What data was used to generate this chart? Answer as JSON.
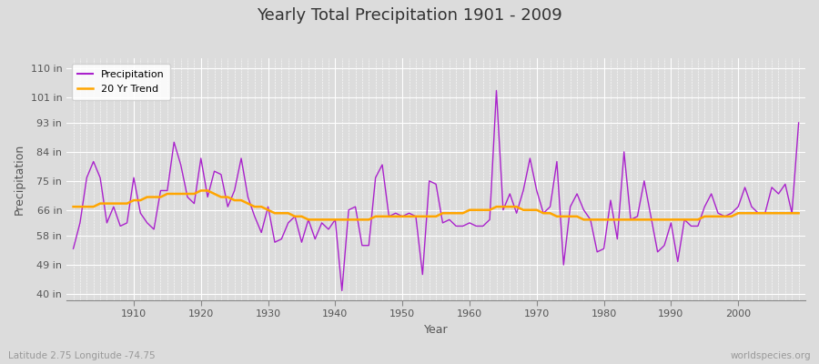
{
  "title": "Yearly Total Precipitation 1901 - 2009",
  "xlabel": "Year",
  "ylabel": "Precipitation",
  "bottom_left": "Latitude 2.75 Longitude -74.75",
  "bottom_right": "worldspecies.org",
  "years": [
    1901,
    1902,
    1903,
    1904,
    1905,
    1906,
    1907,
    1908,
    1909,
    1910,
    1911,
    1912,
    1913,
    1914,
    1915,
    1916,
    1917,
    1918,
    1919,
    1920,
    1921,
    1922,
    1923,
    1924,
    1925,
    1926,
    1927,
    1928,
    1929,
    1930,
    1931,
    1932,
    1933,
    1934,
    1935,
    1936,
    1937,
    1938,
    1939,
    1940,
    1941,
    1942,
    1943,
    1944,
    1945,
    1946,
    1947,
    1948,
    1949,
    1950,
    1951,
    1952,
    1953,
    1954,
    1955,
    1956,
    1957,
    1958,
    1959,
    1960,
    1961,
    1962,
    1963,
    1964,
    1965,
    1966,
    1967,
    1968,
    1969,
    1970,
    1971,
    1972,
    1973,
    1974,
    1975,
    1976,
    1977,
    1978,
    1979,
    1980,
    1981,
    1982,
    1983,
    1984,
    1985,
    1986,
    1987,
    1988,
    1989,
    1990,
    1991,
    1992,
    1993,
    1994,
    1995,
    1996,
    1997,
    1998,
    1999,
    2000,
    2001,
    2002,
    2003,
    2004,
    2005,
    2006,
    2007,
    2008,
    2009
  ],
  "precip": [
    54,
    62,
    76,
    81,
    76,
    62,
    67,
    61,
    62,
    76,
    65,
    62,
    60,
    72,
    72,
    87,
    80,
    70,
    68,
    82,
    70,
    78,
    77,
    67,
    72,
    82,
    70,
    64,
    59,
    67,
    56,
    57,
    62,
    64,
    56,
    63,
    57,
    62,
    60,
    63,
    41,
    66,
    67,
    55,
    55,
    76,
    80,
    64,
    65,
    64,
    65,
    64,
    46,
    75,
    74,
    62,
    63,
    61,
    61,
    62,
    61,
    61,
    63,
    103,
    66,
    71,
    65,
    72,
    82,
    72,
    65,
    67,
    81,
    49,
    67,
    71,
    66,
    63,
    53,
    54,
    69,
    57,
    84,
    63,
    64,
    75,
    64,
    53,
    55,
    62,
    50,
    63,
    61,
    61,
    67,
    71,
    65,
    64,
    65,
    67,
    73,
    67,
    65,
    65,
    73,
    71,
    74,
    65,
    93
  ],
  "trend": [
    67,
    67,
    67,
    67,
    68,
    68,
    68,
    68,
    68,
    69,
    69,
    70,
    70,
    70,
    71,
    71,
    71,
    71,
    71,
    72,
    72,
    71,
    70,
    70,
    69,
    69,
    68,
    67,
    67,
    66,
    65,
    65,
    65,
    64,
    64,
    63,
    63,
    63,
    63,
    63,
    63,
    63,
    63,
    63,
    63,
    64,
    64,
    64,
    64,
    64,
    64,
    64,
    64,
    64,
    64,
    65,
    65,
    65,
    65,
    66,
    66,
    66,
    66,
    67,
    67,
    67,
    67,
    66,
    66,
    66,
    65,
    65,
    64,
    64,
    64,
    64,
    63,
    63,
    63,
    63,
    63,
    63,
    63,
    63,
    63,
    63,
    63,
    63,
    63,
    63,
    63,
    63,
    63,
    63,
    64,
    64,
    64,
    64,
    64,
    65,
    65,
    65,
    65,
    65,
    65,
    65,
    65,
    65,
    65
  ],
  "precip_color": "#AA22CC",
  "trend_color": "#FFA500",
  "fig_bg_color": "#DCDCDC",
  "plot_bg_color": "#DCDCDC",
  "grid_color": "#FFFFFF",
  "yticks": [
    40,
    49,
    58,
    66,
    75,
    84,
    93,
    101,
    110
  ],
  "ytick_labels": [
    "40 in",
    "49 in",
    "58 in",
    "66 in",
    "75 in",
    "84 in",
    "93 in",
    "101 in",
    "110 in"
  ],
  "xticks": [
    1910,
    1920,
    1930,
    1940,
    1950,
    1960,
    1970,
    1980,
    1990,
    2000
  ],
  "ylim": [
    38,
    113
  ],
  "xlim": [
    1900,
    2010
  ]
}
